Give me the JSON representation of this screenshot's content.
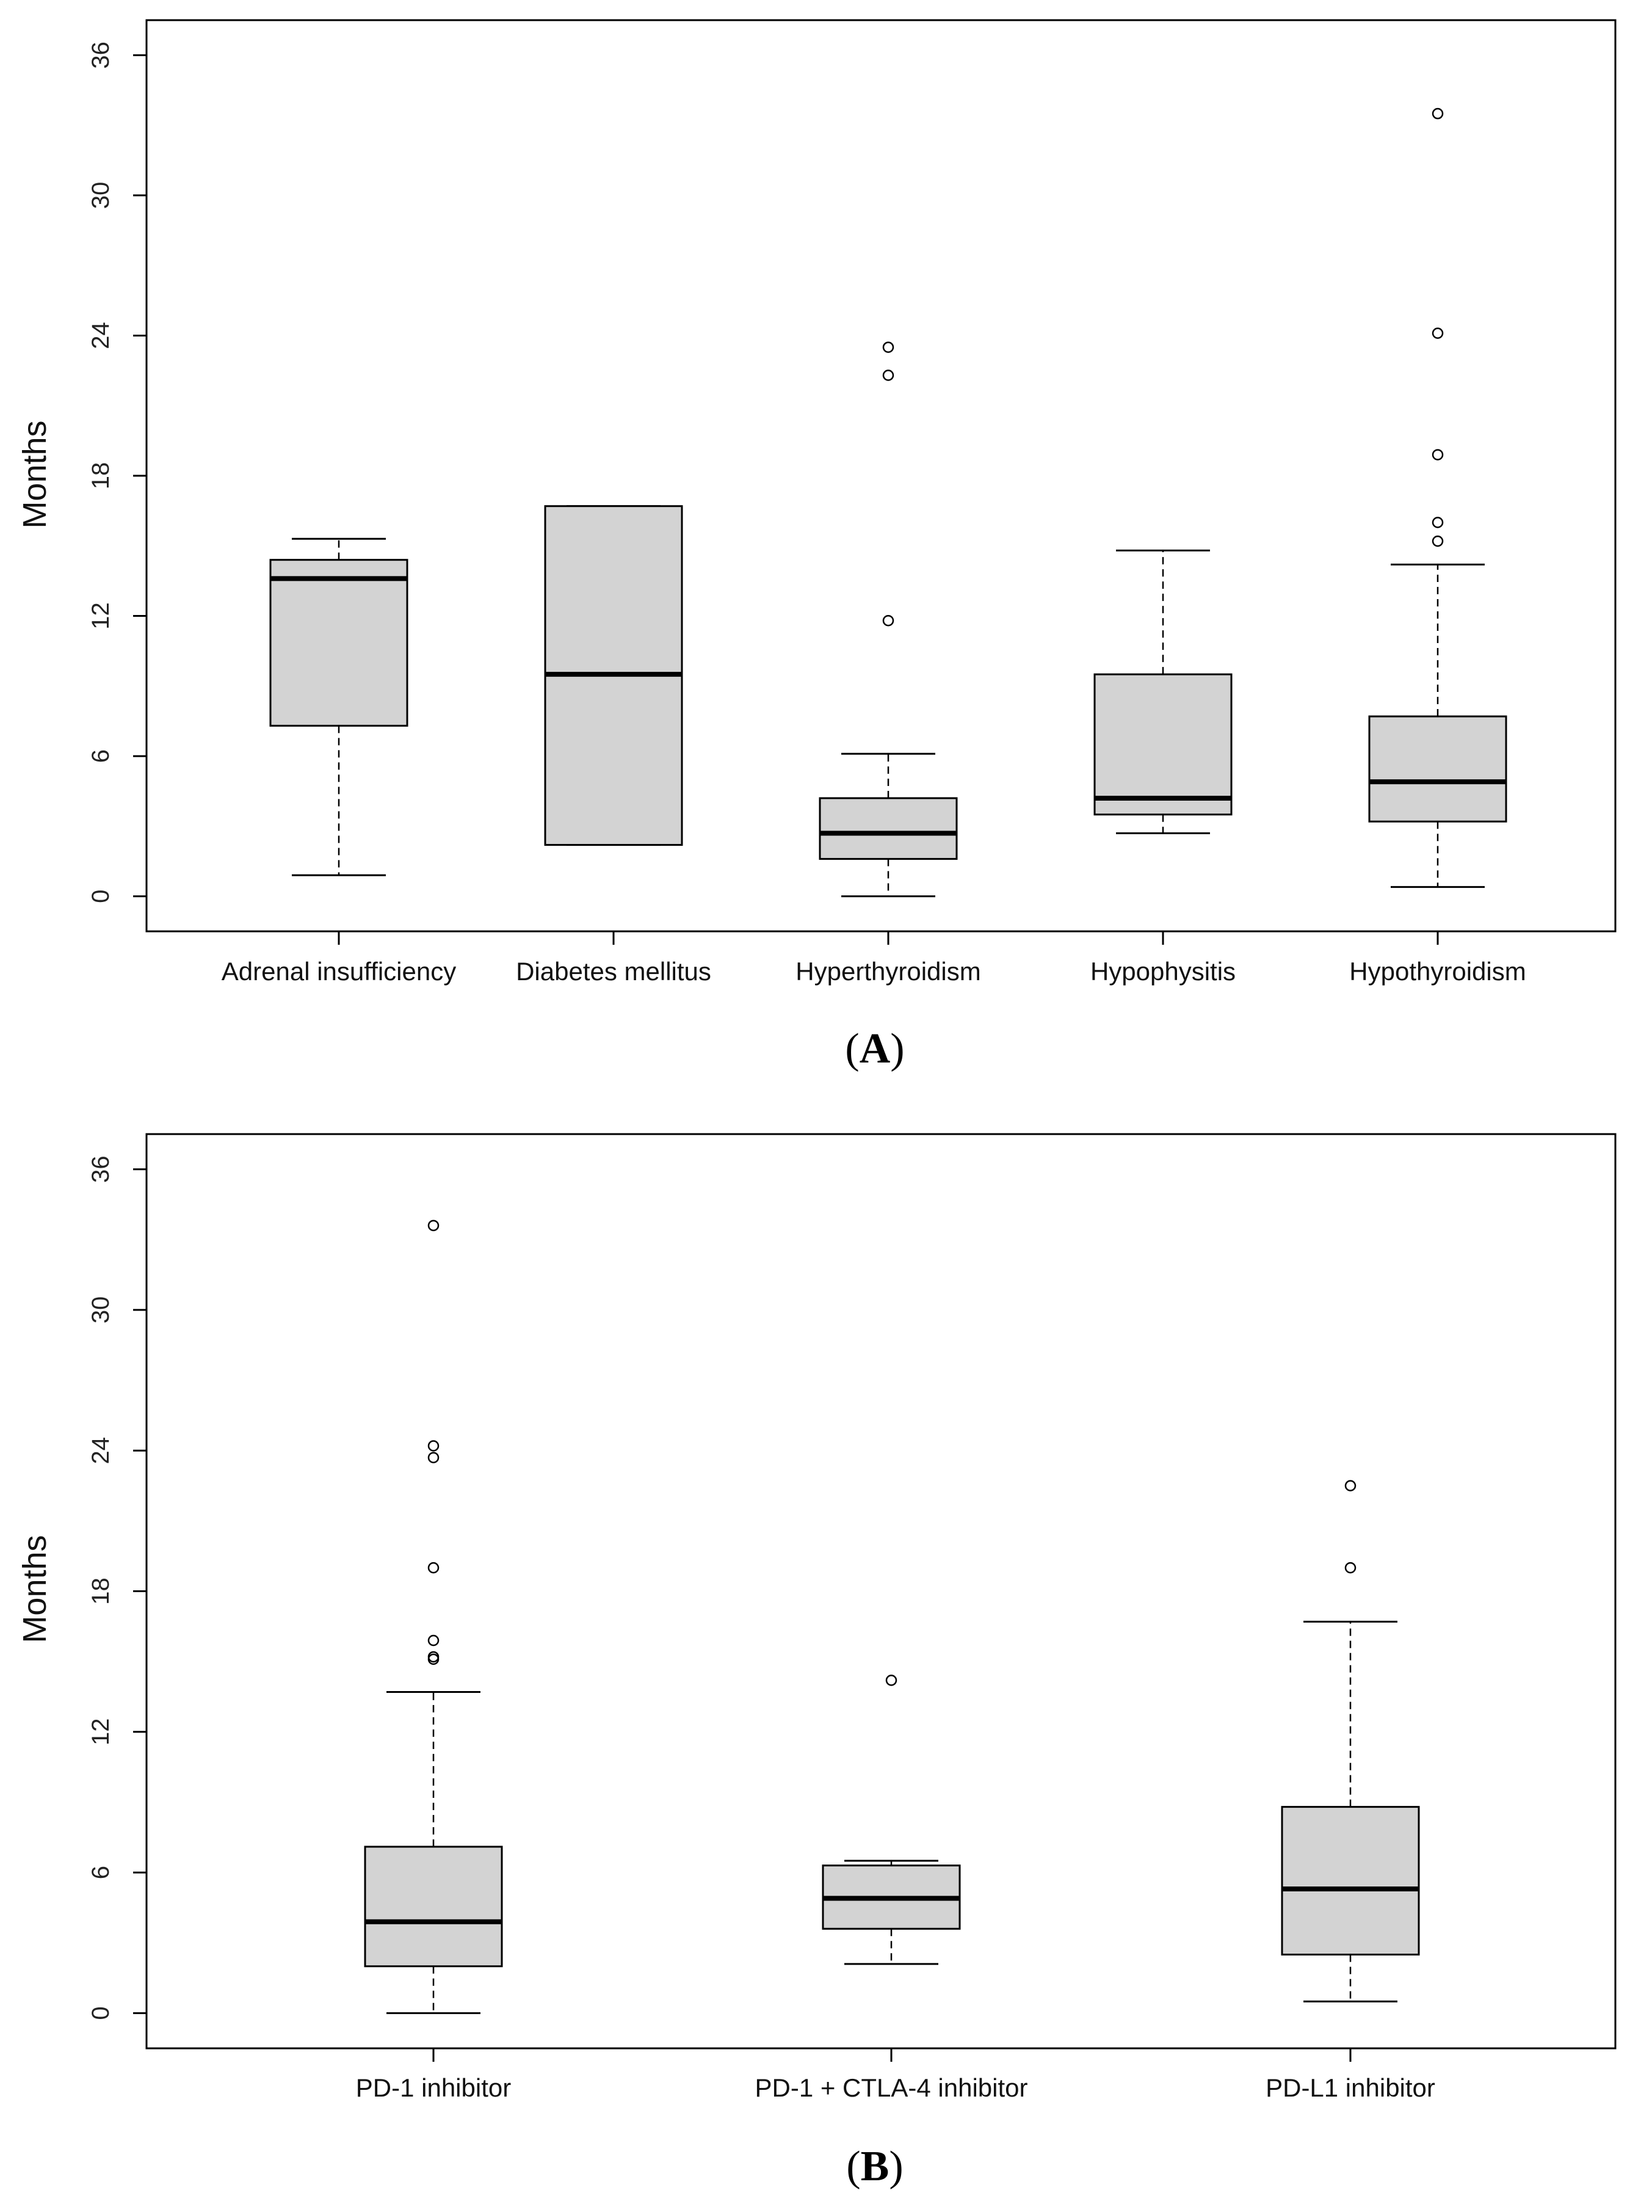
{
  "chart_data": [
    {
      "type": "boxplot",
      "panel_label": "A",
      "ylabel": "Months",
      "ylim": [
        -1.5,
        37.5
      ],
      "yticks": [
        0,
        6,
        12,
        18,
        24,
        30,
        36
      ],
      "ytick_labels": [
        "0",
        "6",
        "12",
        "18",
        "24",
        "30",
        "36"
      ],
      "categories": [
        "Adrenal insufficiency",
        "Diabetes mellitus",
        "Hyperthyroidism",
        "Hypophysitis",
        "Hypothyroidism"
      ],
      "box_fill": "#d3d3d3",
      "boxes": [
        {
          "name": "Adrenal insufficiency",
          "whisker_low": 0.9,
          "q1": 7.3,
          "median": 13.6,
          "q3": 14.4,
          "whisker_high": 15.3,
          "outliers": []
        },
        {
          "name": "Diabetes mellitus",
          "whisker_low": 2.2,
          "q1": 2.2,
          "median": 9.5,
          "q3": 16.7,
          "whisker_high": 16.7,
          "outliers": []
        },
        {
          "name": "Hyperthyroidism",
          "whisker_low": 0.0,
          "q1": 1.6,
          "median": 2.7,
          "q3": 4.2,
          "whisker_high": 6.1,
          "outliers": [
            11.8,
            22.3,
            23.5
          ]
        },
        {
          "name": "Hypophysitis",
          "whisker_low": 2.7,
          "q1": 3.5,
          "median": 4.2,
          "q3": 9.5,
          "whisker_high": 14.8,
          "outliers": []
        },
        {
          "name": "Hypothyroidism",
          "whisker_low": 0.4,
          "q1": 3.2,
          "median": 4.9,
          "q3": 7.7,
          "whisker_high": 14.2,
          "outliers": [
            15.2,
            16.0,
            18.9,
            24.1,
            33.5
          ]
        }
      ]
    },
    {
      "type": "boxplot",
      "panel_label": "B",
      "ylabel": "Months",
      "ylim": [
        -1.5,
        37.5
      ],
      "yticks": [
        0,
        6,
        12,
        18,
        24,
        30,
        36
      ],
      "ytick_labels": [
        "0",
        "6",
        "12",
        "18",
        "24",
        "30",
        "36"
      ],
      "categories": [
        "PD-1 inhibitor",
        "PD-1 + CTLA-4 inhibitor",
        "PD-L1 inhibitor"
      ],
      "box_fill": "#d3d3d3",
      "boxes": [
        {
          "name": "PD-1 inhibitor",
          "whisker_low": 0.0,
          "q1": 2.0,
          "median": 3.9,
          "q3": 7.1,
          "whisker_high": 13.7,
          "outliers": [
            15.1,
            15.2,
            15.9,
            19.0,
            23.7,
            24.2,
            33.6
          ]
        },
        {
          "name": "PD-1 + CTLA-4 inhibitor",
          "whisker_low": 2.1,
          "q1": 3.6,
          "median": 4.9,
          "q3": 6.3,
          "whisker_high": 6.5,
          "outliers": [
            14.2
          ]
        },
        {
          "name": "PD-L1 inhibitor",
          "whisker_low": 0.5,
          "q1": 2.5,
          "median": 5.3,
          "q3": 8.8,
          "whisker_high": 16.7,
          "outliers": [
            19.0,
            22.5
          ]
        }
      ]
    }
  ]
}
